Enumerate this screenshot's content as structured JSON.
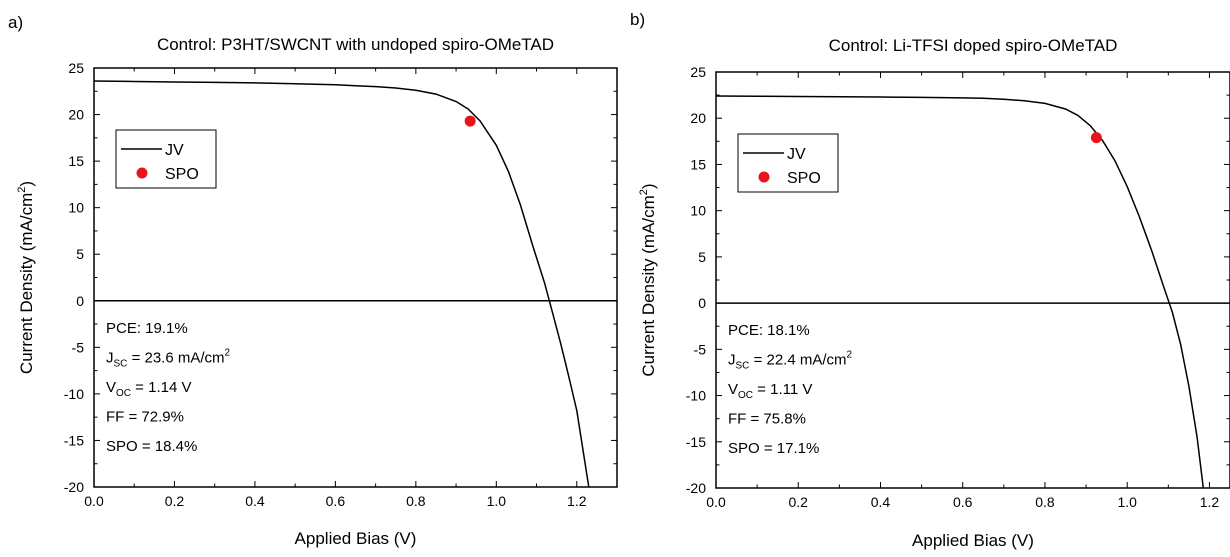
{
  "chart_data": [
    {
      "panel_label": "a)",
      "type": "line",
      "title": "Control: P3HT/SWCNT with undoped spiro-OMeTAD",
      "xlabel": "Applied Bias (V)",
      "ylabel": "Current Density (mA/cm",
      "ylabel_sup": "2",
      "ylabel_close": ")",
      "xlim": [
        0.0,
        1.3
      ],
      "ylim": [
        -20,
        25
      ],
      "xticks": [
        0.0,
        0.2,
        0.4,
        0.6,
        0.8,
        1.0,
        1.2
      ],
      "xtick_labels": [
        "0.0",
        "0.2",
        "0.4",
        "0.6",
        "0.8",
        "1.0",
        "1.2"
      ],
      "yticks": [
        -20,
        -15,
        -10,
        -5,
        0,
        5,
        10,
        15,
        20,
        25
      ],
      "ytick_labels": [
        "-20",
        "-15",
        "-10",
        "-5",
        "0",
        "5",
        "10",
        "15",
        "20",
        "25"
      ],
      "grid": false,
      "legend_position": "upper-left",
      "series": [
        {
          "name": "JV",
          "kind": "line",
          "color": "#000000",
          "x": [
            0.0,
            0.1,
            0.2,
            0.3,
            0.4,
            0.5,
            0.6,
            0.65,
            0.7,
            0.75,
            0.8,
            0.85,
            0.9,
            0.93,
            0.96,
            1.0,
            1.03,
            1.06,
            1.09,
            1.12,
            1.14,
            1.16,
            1.18,
            1.2,
            1.23
          ],
          "y": [
            23.6,
            23.55,
            23.5,
            23.45,
            23.4,
            23.3,
            23.2,
            23.1,
            23.0,
            22.85,
            22.6,
            22.2,
            21.4,
            20.6,
            19.3,
            16.7,
            13.9,
            10.3,
            6.0,
            1.9,
            -1.3,
            -4.6,
            -8.1,
            -11.8,
            -20.0
          ]
        },
        {
          "name": "SPO",
          "kind": "scatter",
          "color": "#e8141c",
          "x": [
            0.935
          ],
          "y": [
            19.3
          ]
        }
      ],
      "annotations": {
        "pce": "PCE: 19.1%",
        "jsc_prefix": "J",
        "jsc_sub": "SC",
        "jsc_rest": " = 23.6 mA/cm",
        "jsc_sup": "2",
        "voc_prefix": "V",
        "voc_sub": "OC",
        "voc_rest": " = 1.14 V",
        "ff": "FF = 72.9%",
        "spo": "SPO = 18.4%"
      }
    },
    {
      "panel_label": "b)",
      "type": "line",
      "title": "Control: Li-TFSI doped spiro-OMeTAD",
      "xlabel": "Applied Bias (V)",
      "ylabel": "Current Density (mA/cm",
      "ylabel_sup": "2",
      "ylabel_close": ")",
      "xlim": [
        0.0,
        1.25
      ],
      "ylim": [
        -20,
        25
      ],
      "xticks": [
        0.0,
        0.2,
        0.4,
        0.6,
        0.8,
        1.0,
        1.2
      ],
      "xtick_labels": [
        "0.0",
        "0.2",
        "0.4",
        "0.6",
        "0.8",
        "1.0",
        "1.2"
      ],
      "yticks": [
        -20,
        -15,
        -10,
        -5,
        0,
        5,
        10,
        15,
        20,
        25
      ],
      "ytick_labels": [
        "-20",
        "-15",
        "-10",
        "-5",
        "0",
        "5",
        "10",
        "15",
        "20",
        "25"
      ],
      "grid": false,
      "legend_position": "upper-left",
      "series": [
        {
          "name": "JV",
          "kind": "line",
          "color": "#000000",
          "x": [
            0.0,
            0.1,
            0.2,
            0.3,
            0.4,
            0.5,
            0.6,
            0.65,
            0.7,
            0.75,
            0.8,
            0.85,
            0.88,
            0.91,
            0.94,
            0.97,
            1.0,
            1.03,
            1.06,
            1.09,
            1.11,
            1.13,
            1.15,
            1.17,
            1.185
          ],
          "y": [
            22.4,
            22.38,
            22.35,
            22.32,
            22.3,
            22.25,
            22.2,
            22.15,
            22.05,
            21.9,
            21.6,
            21.0,
            20.3,
            19.2,
            17.6,
            15.4,
            12.6,
            9.3,
            5.6,
            1.6,
            -1.0,
            -4.5,
            -9.0,
            -14.5,
            -20.0
          ]
        },
        {
          "name": "SPO",
          "kind": "scatter",
          "color": "#e8141c",
          "x": [
            0.925
          ],
          "y": [
            17.9
          ]
        }
      ],
      "annotations": {
        "pce": "PCE: 18.1%",
        "jsc_prefix": "J",
        "jsc_sub": "SC",
        "jsc_rest": " = 22.4 mA/cm",
        "jsc_sup": "2",
        "voc_prefix": "V",
        "voc_sub": "OC",
        "voc_rest": " = 1.11 V",
        "ff": "FF = 75.8%",
        "spo": "SPO = 17.1%"
      }
    }
  ]
}
